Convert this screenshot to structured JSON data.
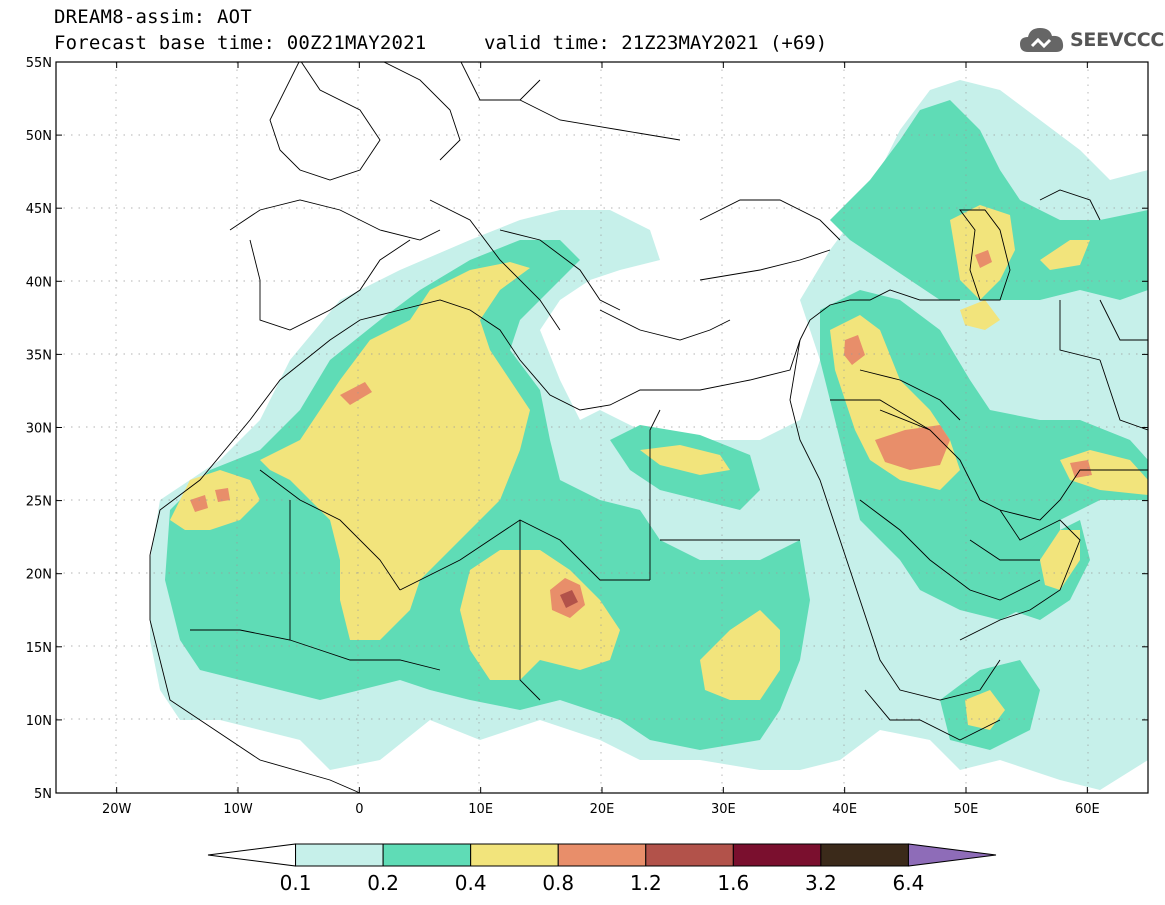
{
  "header": {
    "title_line1": "DREAM8-assim: AOT",
    "base_time": "Forecast base time: 00Z21MAY2021",
    "valid_time": "valid time: 21Z23MAY2021 (+69)",
    "logo_text": "SEEVCCC",
    "logo_icon": "cloud-icon"
  },
  "axes": {
    "lat_labels": [
      "55N",
      "50N",
      "45N",
      "40N",
      "35N",
      "30N",
      "25N",
      "20N",
      "15N",
      "10N",
      "5N"
    ],
    "lon_labels": [
      "20W",
      "10W",
      "0",
      "10E",
      "20E",
      "30E",
      "40E",
      "50E",
      "60E"
    ],
    "lat_range": [
      5,
      55
    ],
    "lon_range": [
      -25,
      65
    ]
  },
  "colorbar": {
    "labels": [
      "0.1",
      "0.2",
      "0.4",
      "0.8",
      "1.2",
      "1.6",
      "3.2",
      "6.4"
    ],
    "colors": [
      "#ffffff",
      "#c6f0ea",
      "#5fdcb6",
      "#f2e47c",
      "#e88e6a",
      "#b2524a",
      "#7a0f2e",
      "#3b2a1a",
      "#8e6cb8"
    ]
  },
  "colors": {
    "light": "#c6f0ea",
    "teal": "#5fdcb6",
    "yellow": "#f2e47c",
    "orange": "#e88e6a",
    "red": "#b2524a"
  }
}
